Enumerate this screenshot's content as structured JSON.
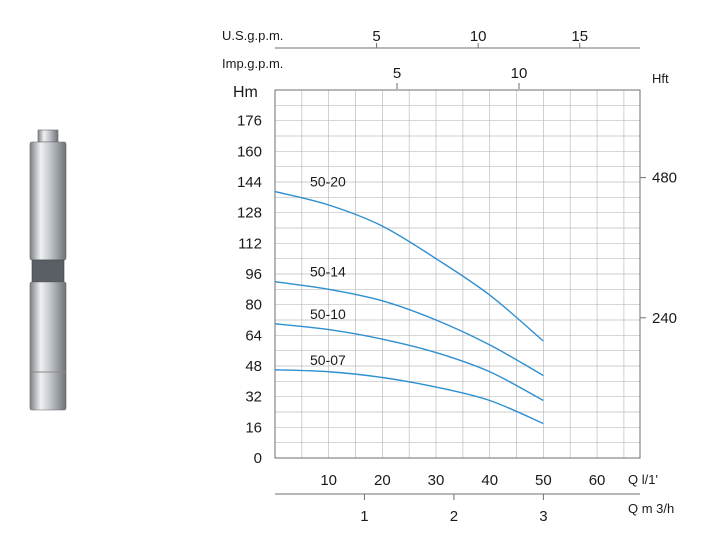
{
  "chart_data": {
    "type": "line",
    "title": "",
    "left_axis": {
      "label": "Hm",
      "ticks": [
        0,
        16,
        32,
        48,
        64,
        80,
        96,
        112,
        128,
        144,
        160,
        176
      ],
      "ylim": [
        0,
        192
      ]
    },
    "right_axis": {
      "label": "Hft",
      "ticks": [
        240,
        480
      ]
    },
    "x_axis": {
      "label": "Q l/1'",
      "ticks": [
        10,
        20,
        30,
        40,
        50,
        60
      ],
      "xlim": [
        0,
        68
      ]
    },
    "x_axis_m3h": {
      "label": "Q m 3/h",
      "ticks": [
        1,
        2,
        3
      ]
    },
    "top_axis_us": {
      "label": "U.S.g.p.m.",
      "ticks": [
        5,
        10,
        15
      ]
    },
    "top_axis_imp": {
      "label": "Imp.g.p.m.",
      "ticks": [
        5,
        10
      ]
    },
    "grid": true,
    "series": [
      {
        "name": "50-20",
        "x": [
          0,
          10,
          20,
          30,
          40,
          50
        ],
        "values": [
          139,
          132,
          121,
          104,
          85,
          61
        ]
      },
      {
        "name": "50-14",
        "x": [
          0,
          10,
          20,
          30,
          40,
          50
        ],
        "values": [
          92,
          88,
          82,
          72,
          59,
          43
        ]
      },
      {
        "name": "50-10",
        "x": [
          0,
          10,
          20,
          30,
          40,
          50
        ],
        "values": [
          70,
          67,
          62,
          55,
          45,
          30
        ]
      },
      {
        "name": "50-07",
        "x": [
          0,
          10,
          20,
          30,
          40,
          50
        ],
        "values": [
          46,
          45,
          42,
          37,
          30,
          18
        ]
      }
    ]
  }
}
